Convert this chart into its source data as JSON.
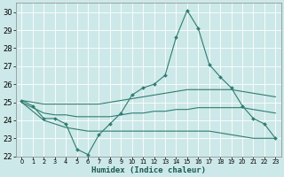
{
  "xlabel": "Humidex (Indice chaleur)",
  "ylabel": "",
  "xlim": [
    -0.5,
    23.5
  ],
  "ylim": [
    22,
    30.5
  ],
  "yticks": [
    22,
    23,
    24,
    25,
    26,
    27,
    28,
    29,
    30
  ],
  "xticks": [
    0,
    1,
    2,
    3,
    4,
    5,
    6,
    7,
    8,
    9,
    10,
    11,
    12,
    13,
    14,
    15,
    16,
    17,
    18,
    19,
    20,
    21,
    22,
    23
  ],
  "bg_color": "#cde8e8",
  "grid_color": "#ffffff",
  "line_color": "#2e7d70",
  "main_series": [
    25.1,
    24.8,
    24.1,
    24.1,
    23.8,
    22.4,
    22.1,
    23.2,
    23.8,
    24.4,
    25.4,
    25.8,
    26.0,
    26.5,
    28.6,
    30.1,
    29.1,
    27.1,
    26.4,
    25.8,
    24.8,
    24.1,
    23.8,
    23.0
  ],
  "upper_series": [
    25.1,
    25.0,
    24.9,
    24.9,
    24.9,
    24.9,
    24.9,
    24.9,
    25.0,
    25.1,
    25.2,
    25.3,
    25.4,
    25.5,
    25.6,
    25.7,
    25.7,
    25.7,
    25.7,
    25.7,
    25.6,
    25.5,
    25.4,
    25.3
  ],
  "mid_series": [
    25.0,
    24.7,
    24.4,
    24.3,
    24.3,
    24.2,
    24.2,
    24.2,
    24.2,
    24.3,
    24.4,
    24.4,
    24.5,
    24.5,
    24.6,
    24.6,
    24.7,
    24.7,
    24.7,
    24.7,
    24.7,
    24.6,
    24.5,
    24.4
  ],
  "lower_series": [
    25.0,
    24.5,
    24.0,
    23.8,
    23.6,
    23.5,
    23.4,
    23.4,
    23.4,
    23.4,
    23.4,
    23.4,
    23.4,
    23.4,
    23.4,
    23.4,
    23.4,
    23.4,
    23.3,
    23.2,
    23.1,
    23.0,
    23.0,
    23.0
  ],
  "xlabel_fontsize": 6.5,
  "ytick_fontsize": 6,
  "xtick_fontsize": 4.8
}
